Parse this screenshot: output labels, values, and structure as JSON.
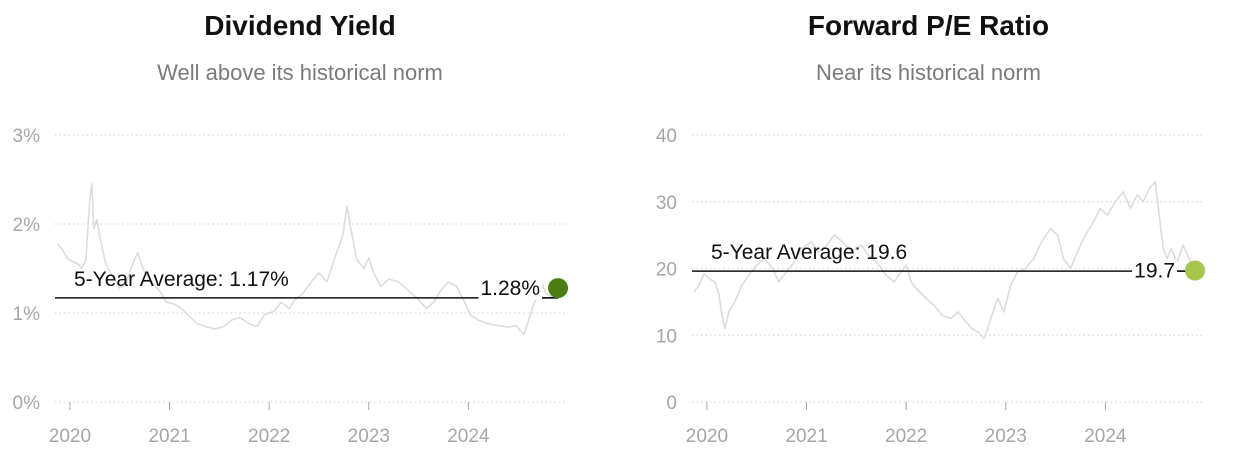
{
  "chart_data": [
    {
      "type": "line",
      "title": "Dividend Yield",
      "subtitle": "Well above its historical norm",
      "ylim": [
        0,
        3
      ],
      "xlim": [
        2019.85,
        2024.97
      ],
      "y_ticks": [
        0,
        1,
        2,
        3
      ],
      "y_tick_labels": [
        "0%",
        "1%",
        "2%",
        "3%"
      ],
      "x_ticks": [
        2020,
        2021,
        2022,
        2023,
        2024
      ],
      "x_tick_labels": [
        "2020",
        "2021",
        "2022",
        "2023",
        "2024"
      ],
      "grid": true,
      "average": {
        "label": "5-Year Average: 1.17%",
        "value": 1.17
      },
      "current": {
        "label": "1.28%",
        "value": 1.28,
        "x": 2024.9,
        "color": "#4a7d12"
      },
      "series": [
        {
          "line_color": "#dcdcdc",
          "points": [
            [
              2019.87,
              1.78
            ],
            [
              2019.92,
              1.72
            ],
            [
              2019.97,
              1.62
            ],
            [
              2020.02,
              1.58
            ],
            [
              2020.08,
              1.55
            ],
            [
              2020.12,
              1.5
            ],
            [
              2020.16,
              1.6
            ],
            [
              2020.2,
              2.3
            ],
            [
              2020.22,
              2.45
            ],
            [
              2020.24,
              1.95
            ],
            [
              2020.27,
              2.05
            ],
            [
              2020.31,
              1.8
            ],
            [
              2020.36,
              1.55
            ],
            [
              2020.42,
              1.42
            ],
            [
              2020.5,
              1.28
            ],
            [
              2020.56,
              1.32
            ],
            [
              2020.62,
              1.52
            ],
            [
              2020.68,
              1.68
            ],
            [
              2020.74,
              1.48
            ],
            [
              2020.82,
              1.35
            ],
            [
              2020.9,
              1.25
            ],
            [
              2020.97,
              1.12
            ],
            [
              2021.05,
              1.1
            ],
            [
              2021.12,
              1.05
            ],
            [
              2021.2,
              0.96
            ],
            [
              2021.28,
              0.88
            ],
            [
              2021.36,
              0.85
            ],
            [
              2021.45,
              0.82
            ],
            [
              2021.55,
              0.85
            ],
            [
              2021.62,
              0.92
            ],
            [
              2021.7,
              0.95
            ],
            [
              2021.8,
              0.88
            ],
            [
              2021.88,
              0.85
            ],
            [
              2021.95,
              0.98
            ],
            [
              2022.05,
              1.02
            ],
            [
              2022.12,
              1.12
            ],
            [
              2022.2,
              1.05
            ],
            [
              2022.26,
              1.15
            ],
            [
              2022.34,
              1.22
            ],
            [
              2022.42,
              1.35
            ],
            [
              2022.5,
              1.45
            ],
            [
              2022.58,
              1.35
            ],
            [
              2022.66,
              1.62
            ],
            [
              2022.74,
              1.88
            ],
            [
              2022.78,
              2.2
            ],
            [
              2022.82,
              1.95
            ],
            [
              2022.88,
              1.6
            ],
            [
              2022.95,
              1.5
            ],
            [
              2023.0,
              1.62
            ],
            [
              2023.05,
              1.45
            ],
            [
              2023.12,
              1.3
            ],
            [
              2023.2,
              1.38
            ],
            [
              2023.3,
              1.35
            ],
            [
              2023.4,
              1.25
            ],
            [
              2023.5,
              1.15
            ],
            [
              2023.58,
              1.05
            ],
            [
              2023.65,
              1.12
            ],
            [
              2023.72,
              1.25
            ],
            [
              2023.8,
              1.35
            ],
            [
              2023.88,
              1.3
            ],
            [
              2023.95,
              1.15
            ],
            [
              2024.02,
              0.98
            ],
            [
              2024.1,
              0.92
            ],
            [
              2024.2,
              0.88
            ],
            [
              2024.3,
              0.86
            ],
            [
              2024.4,
              0.84
            ],
            [
              2024.48,
              0.86
            ],
            [
              2024.52,
              0.8
            ],
            [
              2024.56,
              0.76
            ],
            [
              2024.6,
              0.9
            ],
            [
              2024.65,
              1.08
            ],
            [
              2024.7,
              1.2
            ],
            [
              2024.74,
              1.32
            ],
            [
              2024.78,
              1.22
            ],
            [
              2024.84,
              1.18
            ],
            [
              2024.9,
              1.28
            ]
          ]
        }
      ]
    },
    {
      "type": "line",
      "title": "Forward P/E Ratio",
      "subtitle": "Near its historical norm",
      "ylim": [
        0,
        40
      ],
      "xlim": [
        2019.85,
        2024.97
      ],
      "y_ticks": [
        0,
        10,
        20,
        30,
        40
      ],
      "y_tick_labels": [
        "0",
        "10",
        "20",
        "30",
        "40"
      ],
      "x_ticks": [
        2020,
        2021,
        2022,
        2023,
        2024
      ],
      "x_tick_labels": [
        "2020",
        "2021",
        "2022",
        "2023",
        "2024"
      ],
      "grid": true,
      "average": {
        "label": "5-Year Average: 19.6",
        "value": 19.6
      },
      "current": {
        "label": "19.7",
        "value": 19.7,
        "x": 2024.9,
        "color": "#a6c64c"
      },
      "series": [
        {
          "line_color": "#dcdcdc",
          "points": [
            [
              2019.87,
              16.5
            ],
            [
              2019.92,
              17.5
            ],
            [
              2019.97,
              19.2
            ],
            [
              2020.02,
              18.5
            ],
            [
              2020.08,
              18.0
            ],
            [
              2020.12,
              16.2
            ],
            [
              2020.15,
              13.0
            ],
            [
              2020.18,
              11.0
            ],
            [
              2020.22,
              13.5
            ],
            [
              2020.28,
              15.0
            ],
            [
              2020.35,
              17.5
            ],
            [
              2020.42,
              19.0
            ],
            [
              2020.5,
              20.5
            ],
            [
              2020.58,
              21.5
            ],
            [
              2020.66,
              20.0
            ],
            [
              2020.72,
              18.0
            ],
            [
              2020.8,
              19.5
            ],
            [
              2020.88,
              21.0
            ],
            [
              2020.95,
              23.0
            ],
            [
              2021.05,
              24.0
            ],
            [
              2021.12,
              22.5
            ],
            [
              2021.2,
              23.5
            ],
            [
              2021.28,
              25.0
            ],
            [
              2021.36,
              24.0
            ],
            [
              2021.45,
              22.5
            ],
            [
              2021.55,
              23.5
            ],
            [
              2021.62,
              22.0
            ],
            [
              2021.7,
              21.0
            ],
            [
              2021.8,
              19.0
            ],
            [
              2021.88,
              18.0
            ],
            [
              2021.95,
              19.5
            ],
            [
              2022.0,
              20.5
            ],
            [
              2022.05,
              18.0
            ],
            [
              2022.1,
              17.0
            ],
            [
              2022.2,
              15.5
            ],
            [
              2022.28,
              14.5
            ],
            [
              2022.36,
              13.0
            ],
            [
              2022.45,
              12.5
            ],
            [
              2022.52,
              13.5
            ],
            [
              2022.6,
              12.0
            ],
            [
              2022.66,
              11.0
            ],
            [
              2022.72,
              10.5
            ],
            [
              2022.78,
              9.5
            ],
            [
              2022.82,
              11.0
            ],
            [
              2022.86,
              13.0
            ],
            [
              2022.92,
              15.5
            ],
            [
              2022.98,
              13.5
            ],
            [
              2023.05,
              17.5
            ],
            [
              2023.12,
              19.5
            ],
            [
              2023.2,
              20.0
            ],
            [
              2023.28,
              21.5
            ],
            [
              2023.36,
              24.0
            ],
            [
              2023.45,
              26.0
            ],
            [
              2023.52,
              25.0
            ],
            [
              2023.58,
              21.5
            ],
            [
              2023.65,
              20.0
            ],
            [
              2023.72,
              22.5
            ],
            [
              2023.8,
              25.0
            ],
            [
              2023.88,
              27.0
            ],
            [
              2023.95,
              29.0
            ],
            [
              2024.02,
              28.0
            ],
            [
              2024.1,
              30.0
            ],
            [
              2024.18,
              31.5
            ],
            [
              2024.25,
              29.0
            ],
            [
              2024.32,
              31.0
            ],
            [
              2024.38,
              30.0
            ],
            [
              2024.44,
              32.0
            ],
            [
              2024.5,
              33.0
            ],
            [
              2024.54,
              28.0
            ],
            [
              2024.58,
              23.0
            ],
            [
              2024.62,
              21.5
            ],
            [
              2024.66,
              23.0
            ],
            [
              2024.72,
              21.0
            ],
            [
              2024.78,
              23.5
            ],
            [
              2024.84,
              21.5
            ],
            [
              2024.9,
              19.7
            ]
          ]
        }
      ]
    }
  ]
}
